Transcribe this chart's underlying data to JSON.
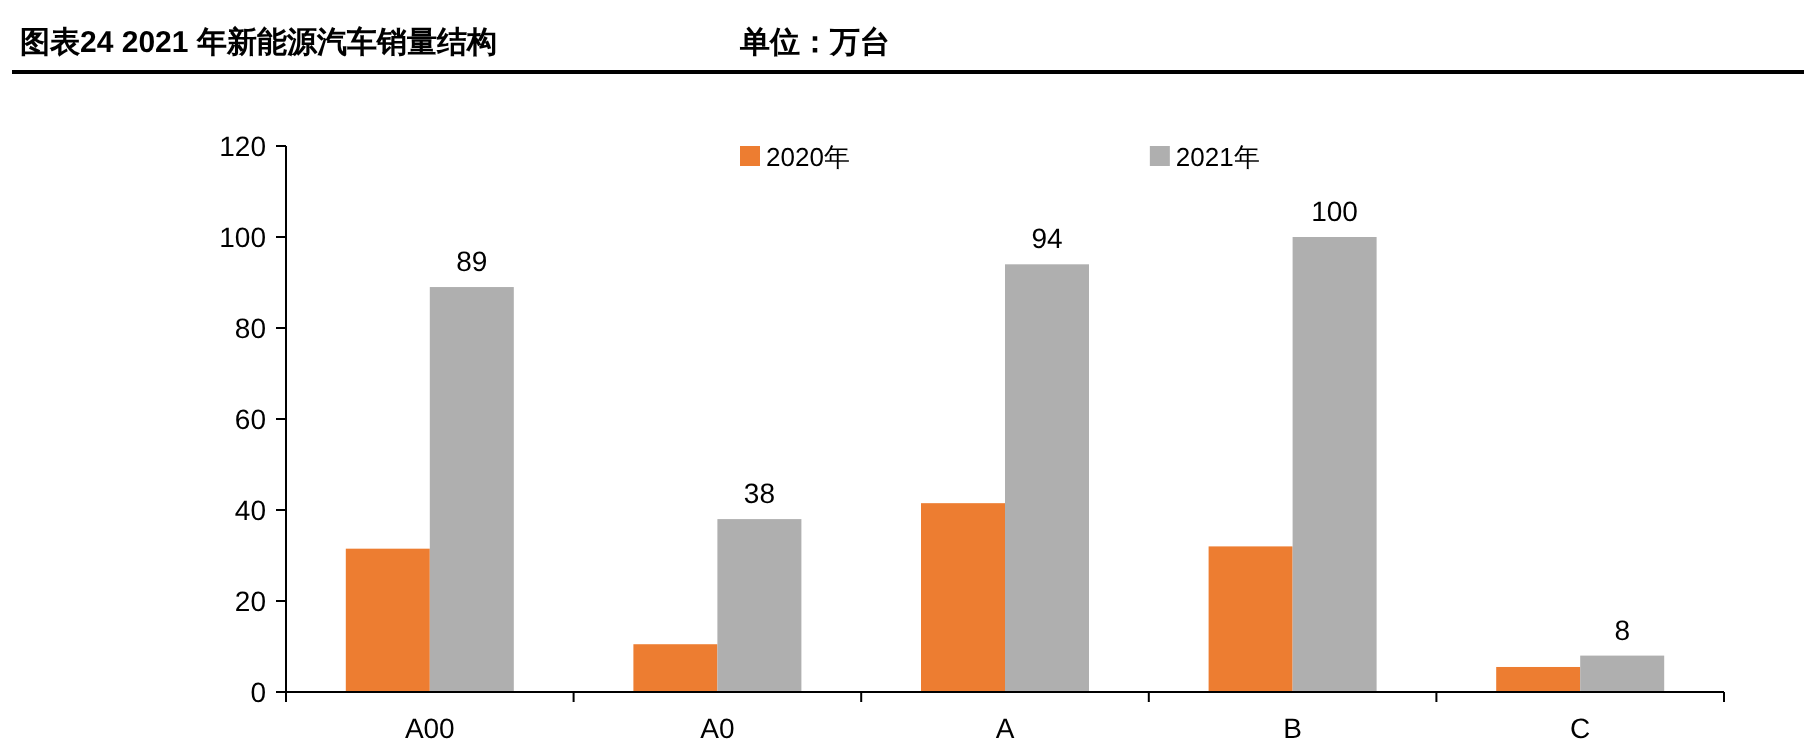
{
  "chart_data": {
    "type": "bar",
    "title": "图表24   2021 年新能源汽车销量结构",
    "subtitle": "单位：万台",
    "categories": [
      "A00",
      "A0",
      "A",
      "B",
      "C"
    ],
    "series": [
      {
        "name": "2020年",
        "color": "#ed7d31",
        "values": [
          31.5,
          10.5,
          41.5,
          32,
          5.5
        ]
      },
      {
        "name": "2021年",
        "color": "#afafaf",
        "values": [
          89,
          38,
          94,
          100,
          8
        ],
        "value_labels": [
          "89",
          "38",
          "94",
          "100",
          "8"
        ]
      }
    ],
    "ylim": [
      0,
      120
    ],
    "yticks": [
      0,
      20,
      40,
      60,
      80,
      100,
      120
    ],
    "legend": "top",
    "grid": false
  }
}
